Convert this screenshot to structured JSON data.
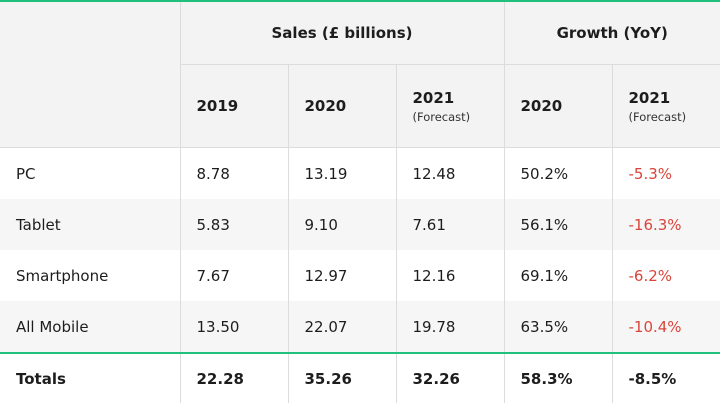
{
  "header": {
    "sales_group": "Sales (£ billions)",
    "growth_group": "Growth (YoY)",
    "columns": [
      {
        "year": "2019",
        "note": ""
      },
      {
        "year": "2020",
        "note": ""
      },
      {
        "year": "2021",
        "note": "(Forecast)"
      },
      {
        "year": "2020",
        "note": ""
      },
      {
        "year": "2021",
        "note": "(Forecast)"
      }
    ]
  },
  "rows": [
    {
      "label": "PC",
      "s2019": "8.78",
      "s2020": "13.19",
      "s2021": "12.48",
      "g2020": "50.2%",
      "g2021": "-5.3%"
    },
    {
      "label": "Tablet",
      "s2019": "5.83",
      "s2020": "9.10",
      "s2021": "7.61",
      "g2020": "56.1%",
      "g2021": "-16.3%"
    },
    {
      "label": "Smartphone",
      "s2019": "7.67",
      "s2020": "12.97",
      "s2021": "12.16",
      "g2020": "69.1%",
      "g2021": "-6.2%"
    },
    {
      "label": "All Mobile",
      "s2019": "13.50",
      "s2020": "22.07",
      "s2021": "19.78",
      "g2020": "63.5%",
      "g2021": "-10.4%"
    }
  ],
  "totals": {
    "label": "Totals",
    "s2019": "22.28",
    "s2020": "35.26",
    "s2021": "32.26",
    "g2020": "58.3%",
    "g2021": "-8.5%"
  },
  "colors": {
    "accent": "#1fbf7d",
    "negative": "#d9453b",
    "header_bg": "#f3f3f3"
  }
}
